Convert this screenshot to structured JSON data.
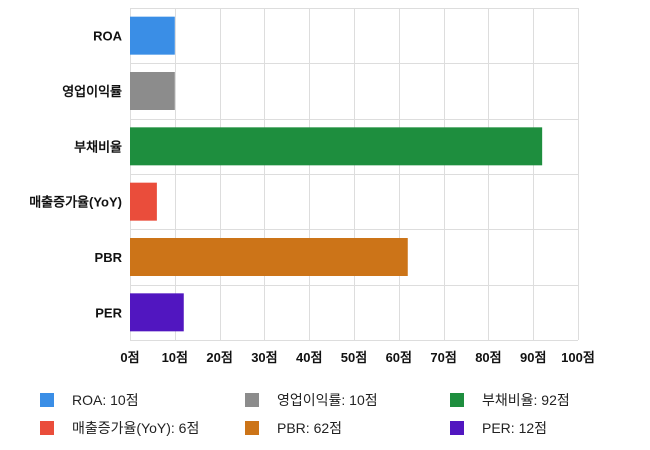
{
  "chart_data": {
    "type": "bar",
    "orientation": "horizontal",
    "categories": [
      "ROA",
      "영업이익률",
      "부채비율",
      "매출증가율(YoY)",
      "PBR",
      "PER"
    ],
    "values": [
      10,
      10,
      92,
      6,
      62,
      12
    ],
    "colors": [
      "#3a8ee6",
      "#8c8c8c",
      "#1e8e3e",
      "#ea4d3b",
      "#cc7418",
      "#5116c0"
    ],
    "xlim": [
      0,
      100
    ],
    "x_ticks": [
      "0점",
      "10점",
      "20점",
      "30점",
      "40점",
      "50점",
      "60점",
      "70점",
      "80점",
      "90점",
      "100점"
    ],
    "grid": true,
    "legend_position": "bottom",
    "legend": [
      "ROA: 10점",
      "영업이익률: 10점",
      "부채비율: 92점",
      "매출증가율(YoY): 6점",
      "PBR: 62점",
      "PER: 12점"
    ]
  }
}
